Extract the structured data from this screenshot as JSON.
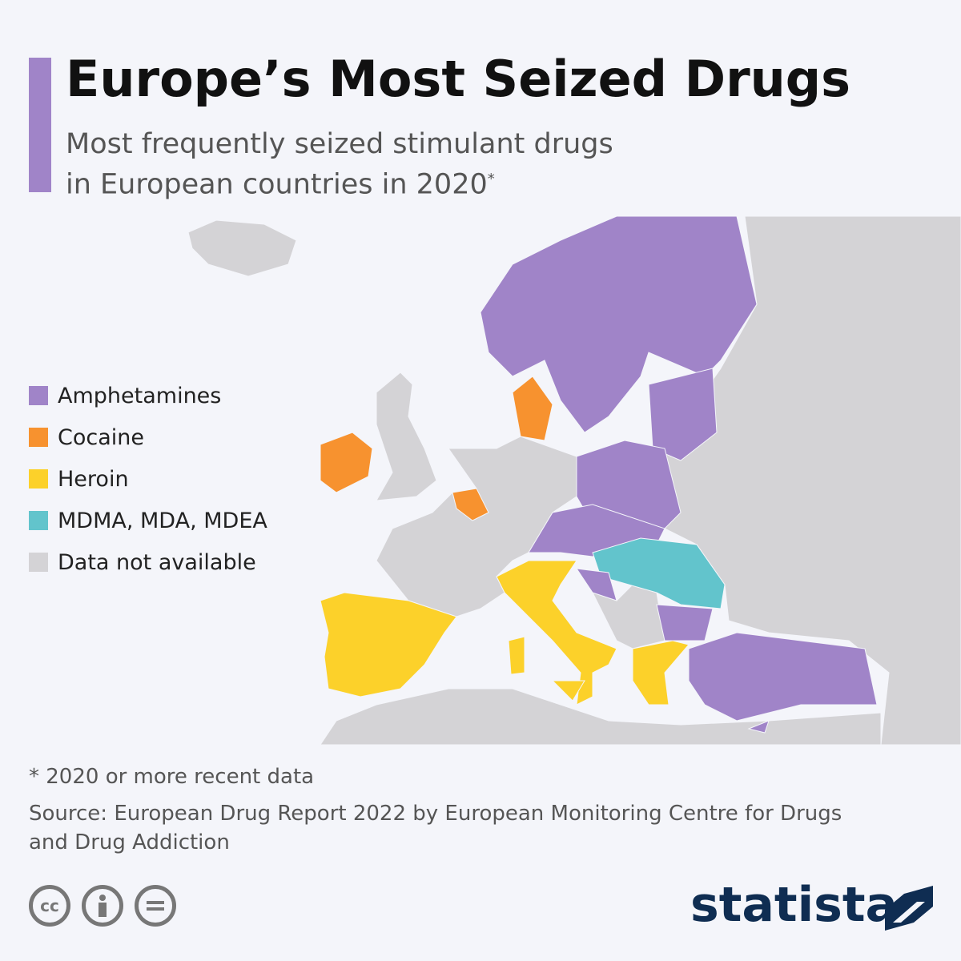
{
  "header": {
    "title": "Europe’s Most Seized Drugs",
    "subtitle_line1": "Most frequently seized stimulant drugs",
    "subtitle_line2": "in European countries in 2020",
    "subtitle_mark": "*"
  },
  "legend": [
    {
      "label": "Amphetamines",
      "color": "#a084c8"
    },
    {
      "label": "Cocaine",
      "color": "#f7922f"
    },
    {
      "label": "Heroin",
      "color": "#fcd12a"
    },
    {
      "label": "MDMA, MDA, MDEA",
      "color": "#62c4cc"
    },
    {
      "label": "Data not available",
      "color": "#d4d3d6"
    }
  ],
  "footer": {
    "note": "* 2020 or more recent data",
    "source": "Source: European Drug Report 2022 by European Monitoring Centre for Drugs and Drug Addiction",
    "license_icon": "cc",
    "brand": "statista"
  }
}
